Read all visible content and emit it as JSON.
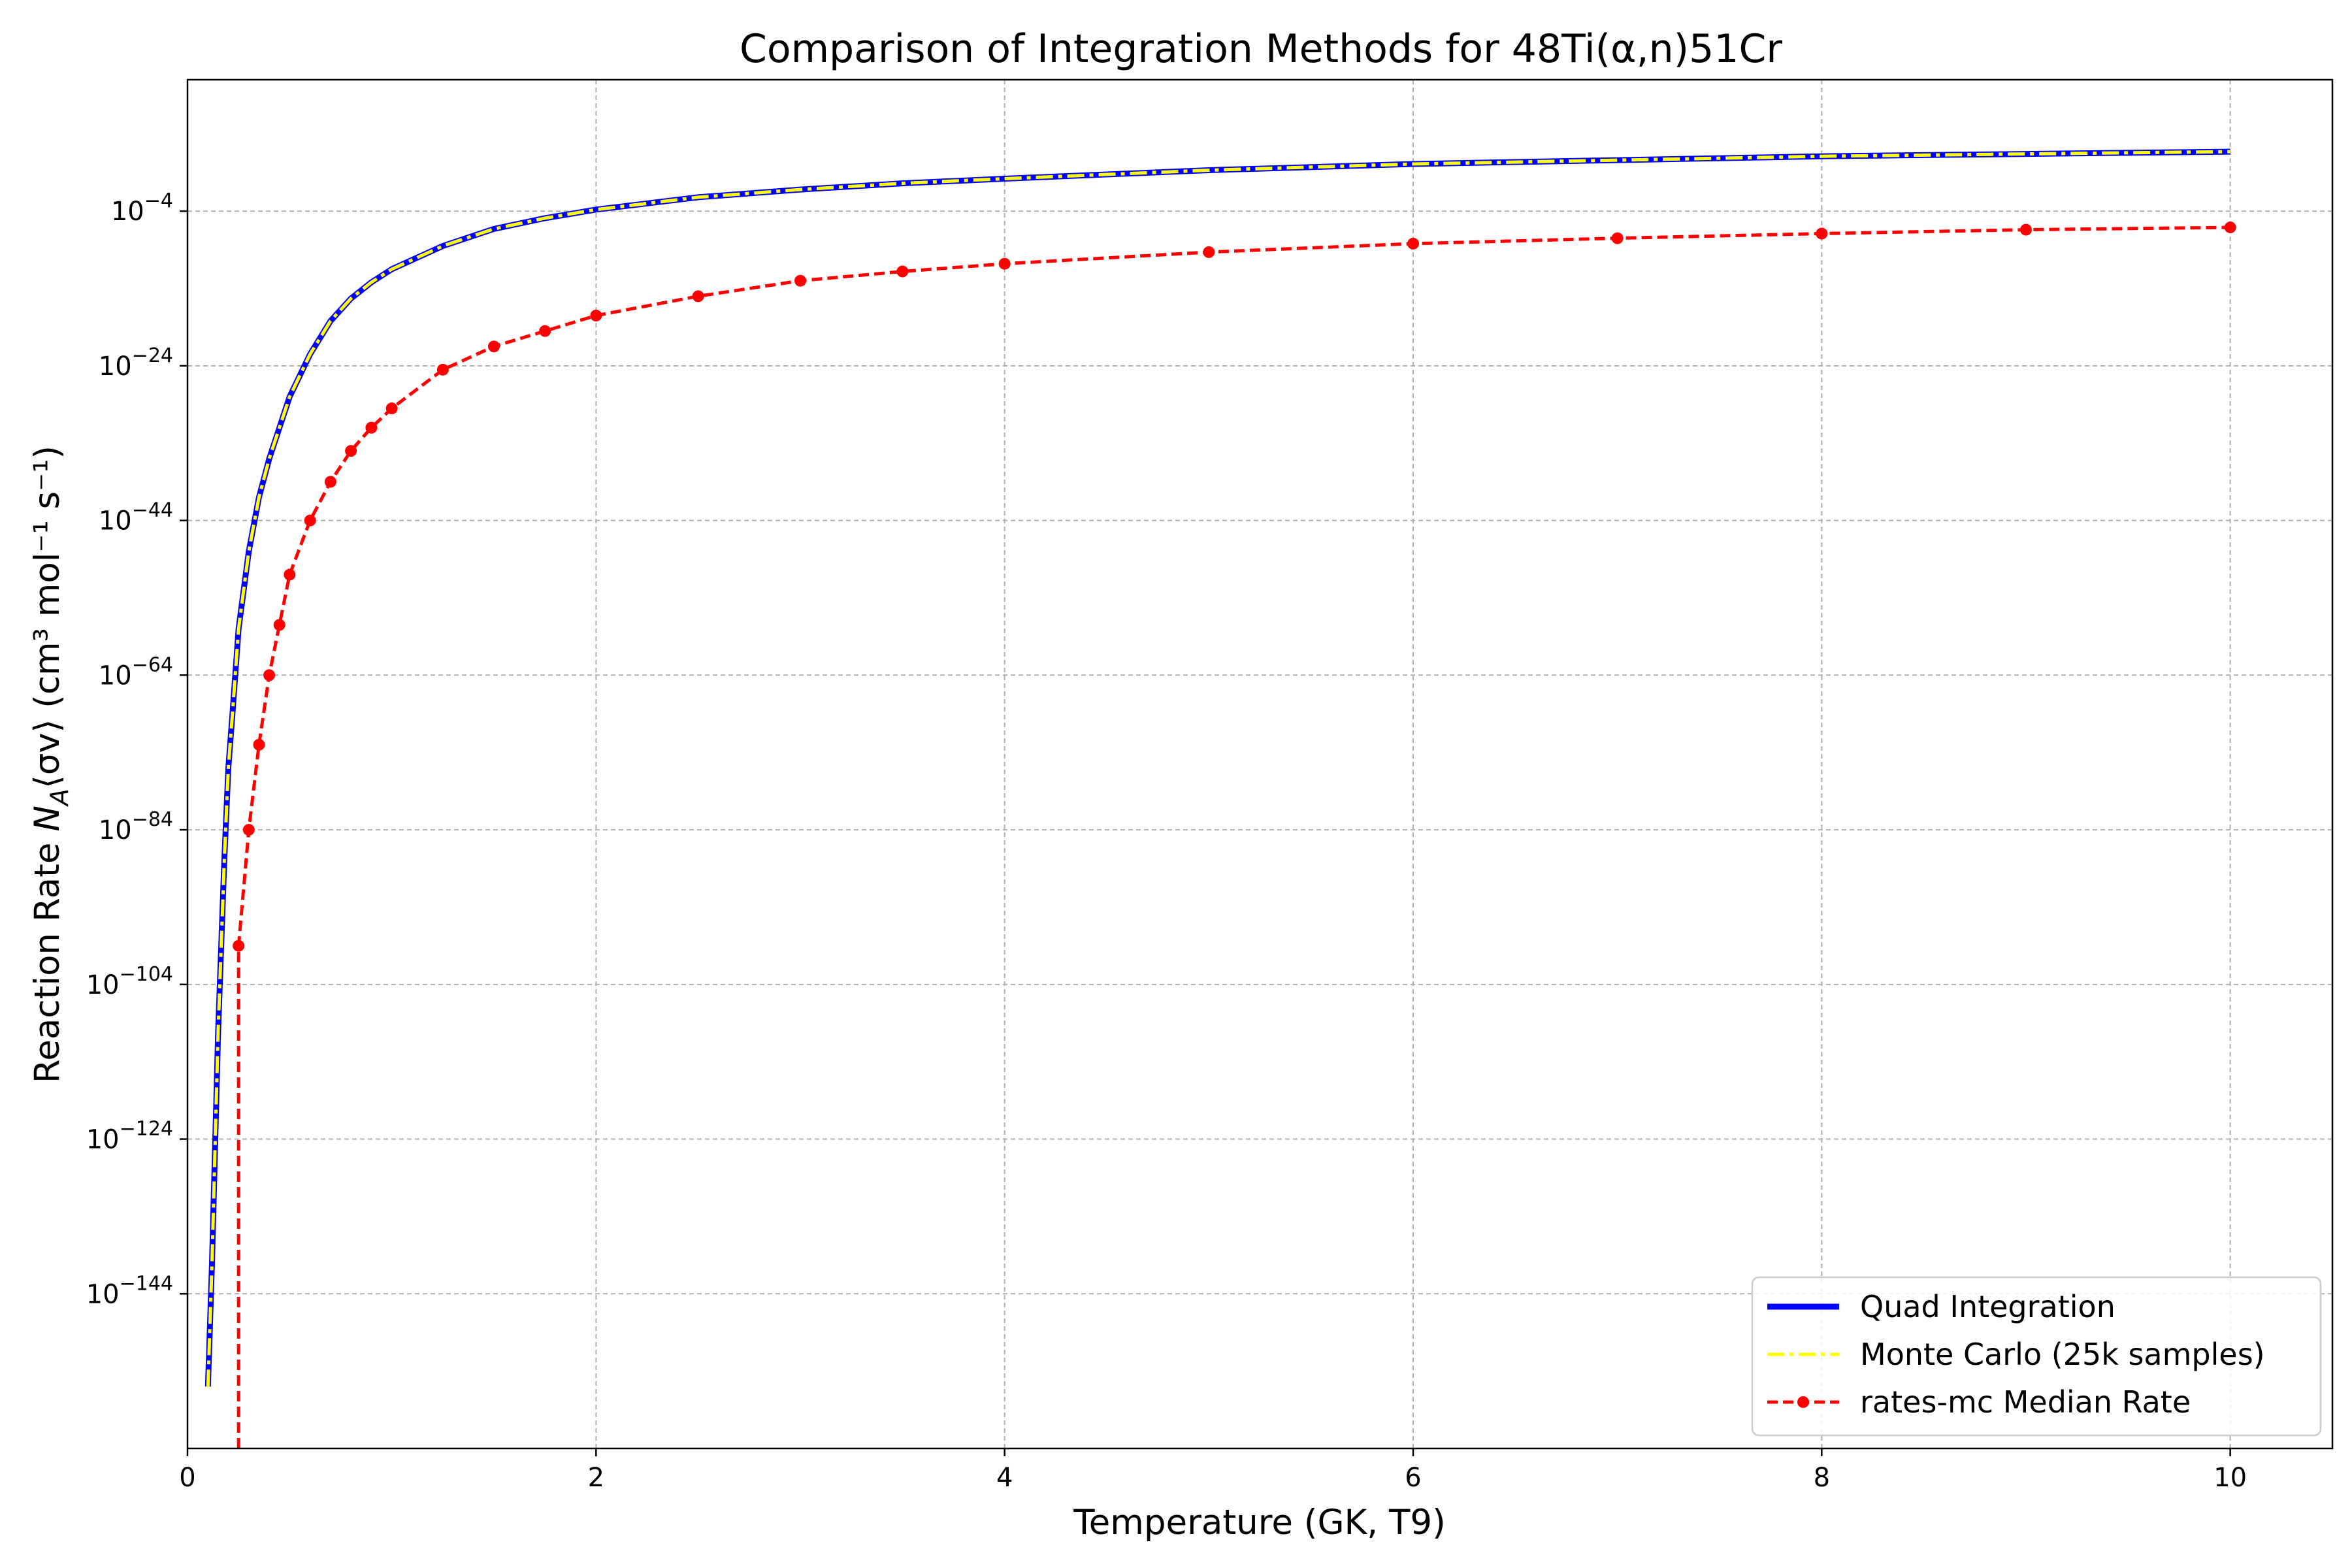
{
  "chart_data": {
    "type": "line",
    "title": "Comparison of Integration Methods for 48Ti(α,n)51Cr",
    "xlabel": "Temperature (GK, T9)",
    "ylabel": {
      "prefix": "Reaction Rate ",
      "math_N": "N",
      "math_sub": "A",
      "math_rest": "⟨σv⟩",
      "suffix": " (cm³ mol⁻¹ s⁻¹)"
    },
    "xlim": [
      0,
      10.5
    ],
    "ylim_log10": [
      -164,
      13
    ],
    "y_scale": "log",
    "grid": true,
    "legend_position": "lower-right",
    "x_ticks": [
      {
        "value": 0,
        "label": "0"
      },
      {
        "value": 2,
        "label": "2"
      },
      {
        "value": 4,
        "label": "4"
      },
      {
        "value": 6,
        "label": "6"
      },
      {
        "value": 8,
        "label": "8"
      },
      {
        "value": 10,
        "label": "10"
      }
    ],
    "y_ticks": [
      {
        "exp": -144,
        "base": "10",
        "sup": "−144"
      },
      {
        "exp": -124,
        "base": "10",
        "sup": "−124"
      },
      {
        "exp": -104,
        "base": "10",
        "sup": "−104"
      },
      {
        "exp": -84,
        "base": "10",
        "sup": "−84"
      },
      {
        "exp": -64,
        "base": "10",
        "sup": "−64"
      },
      {
        "exp": -44,
        "base": "10",
        "sup": "−44"
      },
      {
        "exp": -24,
        "base": "10",
        "sup": "−24"
      },
      {
        "exp": -4,
        "base": "10",
        "sup": "−4"
      }
    ],
    "series": [
      {
        "name": "Quad Integration",
        "color": "#0000ff",
        "style": "solid",
        "x": [
          0.1,
          0.12,
          0.15,
          0.18,
          0.2,
          0.22,
          0.25,
          0.3,
          0.35,
          0.4,
          0.45,
          0.5,
          0.6,
          0.7,
          0.8,
          0.9,
          1.0,
          1.25,
          1.5,
          1.75,
          2.0,
          2.5,
          3.0,
          3.5,
          4.0,
          5.0,
          6.0,
          7.0,
          8.0,
          9.0,
          10.0
        ],
        "log10_y": [
          -156,
          -140,
          -110,
          -88,
          -76,
          -69,
          -58,
          -48,
          -41,
          -36,
          -32,
          -28,
          -22.5,
          -18.2,
          -15.3,
          -13.2,
          -11.5,
          -8.5,
          -6.3,
          -4.9,
          -3.8,
          -2.2,
          -1.2,
          -0.4,
          0.2,
          1.3,
          2.1,
          2.6,
          3.1,
          3.4,
          3.7
        ]
      },
      {
        "name": "Monte Carlo (25k samples)",
        "color": "#ffff00",
        "style": "dashdot",
        "x": [
          0.1,
          0.12,
          0.15,
          0.18,
          0.2,
          0.22,
          0.25,
          0.3,
          0.35,
          0.4,
          0.45,
          0.5,
          0.6,
          0.7,
          0.8,
          0.9,
          1.0,
          1.25,
          1.5,
          1.75,
          2.0,
          2.5,
          3.0,
          3.5,
          4.0,
          5.0,
          6.0,
          7.0,
          8.0,
          9.0,
          10.0
        ],
        "log10_y": [
          -156,
          -140,
          -110,
          -88,
          -76,
          -69,
          -58,
          -48,
          -41,
          -36,
          -32,
          -28,
          -22.5,
          -18.2,
          -15.3,
          -13.2,
          -11.5,
          -8.5,
          -6.3,
          -4.9,
          -3.8,
          -2.2,
          -1.2,
          -0.4,
          0.2,
          1.3,
          2.1,
          2.6,
          3.1,
          3.4,
          3.7
        ]
      },
      {
        "name": "rates-mc Median Rate",
        "color": "#ff0000",
        "style": "dashed-markers",
        "x": [
          0.25,
          0.3,
          0.35,
          0.4,
          0.45,
          0.5,
          0.6,
          0.7,
          0.8,
          0.9,
          1.0,
          1.25,
          1.5,
          1.75,
          2.0,
          2.5,
          3.0,
          3.5,
          4.0,
          5.0,
          6.0,
          7.0,
          8.0,
          9.0,
          10.0
        ],
        "log10_y": [
          -99,
          -84,
          -73,
          -64,
          -57.5,
          -51,
          -44,
          -39,
          -35,
          -32,
          -29.5,
          -24.5,
          -21.5,
          -19.5,
          -17.5,
          -15,
          -13,
          -11.8,
          -10.8,
          -9.3,
          -8.2,
          -7.5,
          -6.9,
          -6.4,
          -6.1
        ],
        "line_extends_below_to_x": 0.25
      }
    ]
  }
}
